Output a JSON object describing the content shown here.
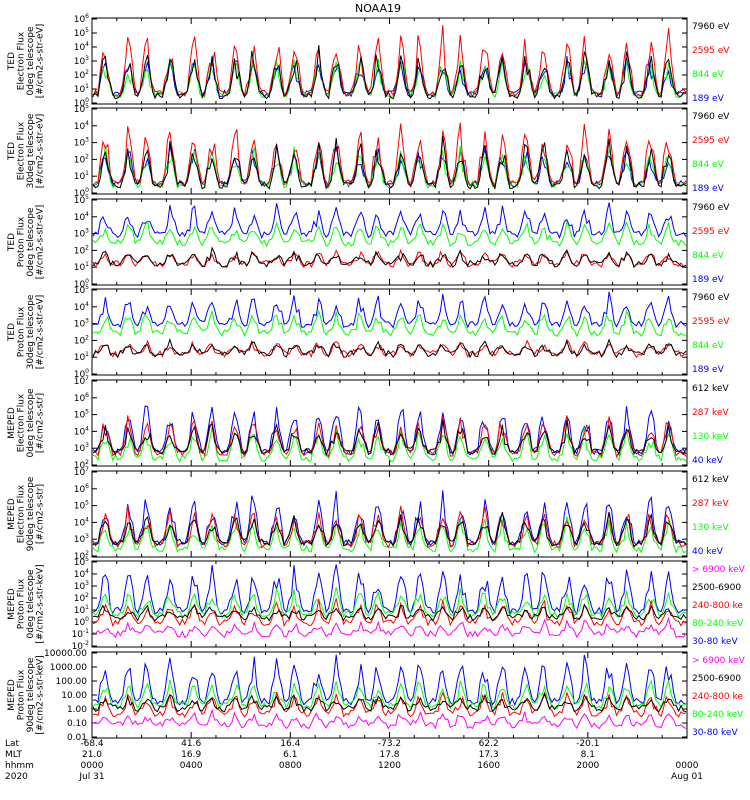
{
  "title": "NOAA19",
  "colors": {
    "black": "#000000",
    "red": "#ff0000",
    "green": "#00ff00",
    "blue": "#0000ff",
    "magenta": "#ff00ff",
    "axis": "#000000"
  },
  "chart_data": [
    {
      "type": "line",
      "panel": "ted-electron-0deg",
      "ylabel": [
        "TED",
        "Electron Flux",
        "0deg telescope",
        "[#/cm2-s-str-eV]"
      ],
      "scale": "log",
      "ylim": [
        1,
        1000000
      ],
      "yticks": [
        "10^0",
        "10^1",
        "10^2",
        "10^3",
        "10^4",
        "10^5",
        "10^6"
      ],
      "series": [
        {
          "name": "7960 eV",
          "color": "#000000"
        },
        {
          "name": "2595 eV",
          "color": "#ff0000"
        },
        {
          "name": "844 eV",
          "color": "#00ff00"
        },
        {
          "name": "189 eV",
          "color": "#0000ff"
        }
      ]
    },
    {
      "type": "line",
      "panel": "ted-electron-30deg",
      "ylabel": [
        "TED",
        "Electron Flux",
        "30deg telescope",
        "[#/cm2-s-str-eV]"
      ],
      "scale": "log",
      "ylim": [
        1,
        100000
      ],
      "yticks": [
        "10^0",
        "10^1",
        "10^2",
        "10^3",
        "10^4",
        "10^5"
      ],
      "series": [
        {
          "name": "7960 eV",
          "color": "#000000"
        },
        {
          "name": "2595 eV",
          "color": "#ff0000"
        },
        {
          "name": "844 eV",
          "color": "#00ff00"
        },
        {
          "name": "189 eV",
          "color": "#0000ff"
        }
      ]
    },
    {
      "type": "line",
      "panel": "ted-proton-0deg",
      "ylabel": [
        "TED",
        "Proton Flux",
        "0deg telescope",
        "[#/cm2-s-str-eV]"
      ],
      "scale": "log",
      "ylim": [
        1,
        100000
      ],
      "yticks": [
        "10^0",
        "10^1",
        "10^2",
        "10^3",
        "10^4",
        "10^5"
      ],
      "series": [
        {
          "name": "7960 eV",
          "color": "#000000"
        },
        {
          "name": "2595 eV",
          "color": "#ff0000"
        },
        {
          "name": "844 eV",
          "color": "#00ff00"
        },
        {
          "name": "189 eV",
          "color": "#0000ff"
        }
      ]
    },
    {
      "type": "line",
      "panel": "ted-proton-30deg",
      "ylabel": [
        "TED",
        "Proton Flux",
        "30deg telescope",
        "[#/cm2-s-str-eV]"
      ],
      "scale": "log",
      "ylim": [
        1,
        100000
      ],
      "yticks": [
        "10^0",
        "10^1",
        "10^2",
        "10^3",
        "10^4",
        "10^5"
      ],
      "series": [
        {
          "name": "7960 eV",
          "color": "#000000"
        },
        {
          "name": "2595 eV",
          "color": "#ff0000"
        },
        {
          "name": "844 eV",
          "color": "#00ff00"
        },
        {
          "name": "189 eV",
          "color": "#0000ff"
        }
      ]
    },
    {
      "type": "line",
      "panel": "meped-electron-0deg",
      "ylabel": [
        "MEPED",
        "Electron Flux",
        "0deg telescope",
        "[#/cm2-s-str]"
      ],
      "scale": "log",
      "ylim": [
        100,
        10000000
      ],
      "yticks": [
        "10^2",
        "10^3",
        "10^4",
        "10^5",
        "10^6",
        "10^7"
      ],
      "series": [
        {
          "name": "612 keV",
          "color": "#000000"
        },
        {
          "name": "287 keV",
          "color": "#ff0000"
        },
        {
          "name": "130 keV",
          "color": "#00ff00"
        },
        {
          "name": "40 keV",
          "color": "#0000ff"
        }
      ]
    },
    {
      "type": "line",
      "panel": "meped-electron-90deg",
      "ylabel": [
        "MEPED",
        "Electron Flux",
        "90deg telescope",
        "[#/cm2-s-str]"
      ],
      "scale": "log",
      "ylim": [
        100,
        10000000
      ],
      "yticks": [
        "10^2",
        "10^3",
        "10^4",
        "10^5",
        "10^6",
        "10^7"
      ],
      "series": [
        {
          "name": "612 keV",
          "color": "#000000"
        },
        {
          "name": "287 keV",
          "color": "#ff0000"
        },
        {
          "name": "130 keV",
          "color": "#00ff00"
        },
        {
          "name": "40 keV",
          "color": "#0000ff"
        }
      ]
    },
    {
      "type": "line",
      "panel": "meped-proton-0deg",
      "ylabel": [
        "MEPED",
        "Proton Flux",
        "0deg telescope",
        "[#/cm2-s-str-keV]"
      ],
      "scale": "log",
      "ylim": [
        0.01,
        100000
      ],
      "yticks": [
        "10^-2",
        "10^-1",
        "10^0",
        "10^1",
        "10^2",
        "10^3",
        "10^4",
        "10^5"
      ],
      "series": [
        {
          "name": "> 6900 keV",
          "color": "#ff00ff"
        },
        {
          "name": "2500-6900",
          "color": "#000000"
        },
        {
          "name": "240-800 ke",
          "color": "#ff0000"
        },
        {
          "name": "80-240 keV",
          "color": "#00ff00"
        },
        {
          "name": "30-80 keV",
          "color": "#0000ff"
        }
      ]
    },
    {
      "type": "line",
      "panel": "meped-proton-90deg",
      "ylabel": [
        "MEPED",
        "Proton Flux",
        "90deg telescope",
        "[#/cm2-s-str-keV]"
      ],
      "scale": "log",
      "ylim": [
        0.01,
        10000
      ],
      "yticks": [
        "0.01",
        "0.10",
        "1.00",
        "10.00",
        "100.00",
        "1000.00",
        "10000.00"
      ],
      "series": [
        {
          "name": "> 6900 keV",
          "color": "#ff00ff"
        },
        {
          "name": "2500-6900",
          "color": "#000000"
        },
        {
          "name": "240-800 ke",
          "color": "#ff0000"
        },
        {
          "name": "80-240 keV",
          "color": "#00ff00"
        },
        {
          "name": "30-80 keV",
          "color": "#0000ff"
        }
      ]
    }
  ],
  "xaxis": {
    "row_labels": [
      "Lat",
      "MLT",
      "hhmm",
      "2020"
    ],
    "columns": [
      {
        "lat": "-68.4",
        "mlt": "21.0",
        "hhmm": "0000",
        "date": "Jul 31"
      },
      {
        "lat": "41.6",
        "mlt": "16.9",
        "hhmm": "0400",
        "date": ""
      },
      {
        "lat": "16.4",
        "mlt": "6.1",
        "hhmm": "0800",
        "date": ""
      },
      {
        "lat": "-73.2",
        "mlt": "17.8",
        "hhmm": "1200",
        "date": ""
      },
      {
        "lat": "62.2",
        "mlt": "17.3",
        "hhmm": "1600",
        "date": ""
      },
      {
        "lat": "-20.1",
        "mlt": "8.1",
        "hhmm": "2000",
        "date": ""
      },
      {
        "lat": "",
        "mlt": "",
        "hhmm": "0000",
        "date": "Aug 01"
      }
    ]
  }
}
